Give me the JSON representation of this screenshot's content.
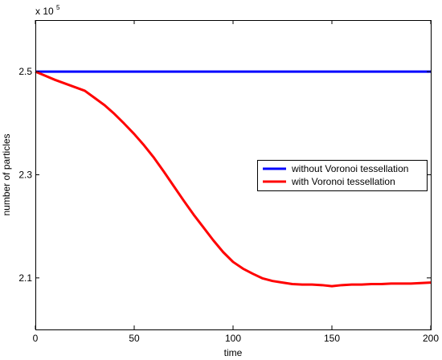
{
  "chart_data": {
    "type": "line",
    "title": "",
    "xlabel": "time",
    "ylabel": "number of particles",
    "multiplier_label": {
      "base": "x 10",
      "exponent": "5"
    },
    "xlim": [
      0,
      200
    ],
    "ylim": [
      2.0,
      2.6
    ],
    "xticks": [
      0,
      50,
      100,
      150,
      200
    ],
    "xtick_labels": [
      "0",
      "50",
      "100",
      "150",
      "200"
    ],
    "yticks": [
      2.1,
      2.3,
      2.5
    ],
    "ytick_labels": [
      "2.1",
      "2.3",
      "2.5"
    ],
    "grid": false,
    "legend_position": "right",
    "series": [
      {
        "name": "without Voronoi tessellation",
        "color": "#0000ff",
        "x": [
          0,
          200
        ],
        "y": [
          2.5,
          2.5
        ]
      },
      {
        "name": "with Voronoi tessellation",
        "color": "#ff0000",
        "x": [
          0,
          5,
          10,
          15,
          20,
          25,
          30,
          35,
          40,
          45,
          50,
          55,
          60,
          65,
          70,
          75,
          80,
          85,
          90,
          95,
          100,
          105,
          110,
          115,
          120,
          125,
          130,
          135,
          140,
          145,
          150,
          155,
          160,
          165,
          170,
          175,
          180,
          185,
          190,
          195,
          200
        ],
        "y": [
          2.5,
          2.492,
          2.484,
          2.477,
          2.47,
          2.463,
          2.449,
          2.435,
          2.418,
          2.399,
          2.379,
          2.357,
          2.333,
          2.306,
          2.278,
          2.25,
          2.223,
          2.198,
          2.173,
          2.15,
          2.131,
          2.118,
          2.108,
          2.099,
          2.094,
          2.091,
          2.088,
          2.087,
          2.087,
          2.086,
          2.084,
          2.086,
          2.087,
          2.087,
          2.088,
          2.088,
          2.089,
          2.089,
          2.089,
          2.09,
          2.091
        ]
      }
    ]
  }
}
